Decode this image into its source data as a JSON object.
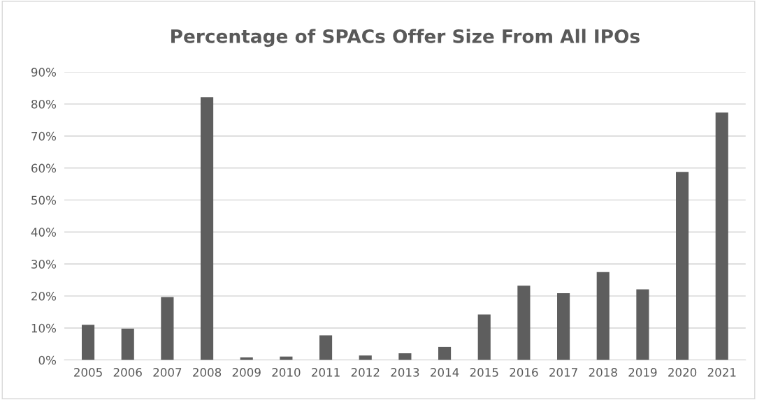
{
  "chart_data": {
    "type": "bar",
    "title": "Percentage of SPACs Offer Size From All IPOs",
    "categories": [
      "2005",
      "2006",
      "2007",
      "2008",
      "2009",
      "2010",
      "2011",
      "2012",
      "2013",
      "2014",
      "2015",
      "2016",
      "2017",
      "2018",
      "2019",
      "2020",
      "2021"
    ],
    "values": [
      11.0,
      9.8,
      19.7,
      82.1,
      0.8,
      1.1,
      7.7,
      1.4,
      2.1,
      4.1,
      14.2,
      23.2,
      20.9,
      27.5,
      22.1,
      58.8,
      77.3
    ],
    "color": "#5e5e5e",
    "ylim": [
      0,
      90
    ],
    "yticks": [
      {
        "value": 0,
        "label": "0%"
      },
      {
        "value": 10,
        "label": "10%"
      },
      {
        "value": 20,
        "label": "20%"
      },
      {
        "value": 30,
        "label": "30%"
      },
      {
        "value": 40,
        "label": "40%"
      },
      {
        "value": 50,
        "label": "50%"
      },
      {
        "value": 60,
        "label": "60%"
      },
      {
        "value": 70,
        "label": "70%"
      },
      {
        "value": 80,
        "label": "80%"
      },
      {
        "value": 90,
        "label": "90%"
      }
    ],
    "grid": "y"
  }
}
